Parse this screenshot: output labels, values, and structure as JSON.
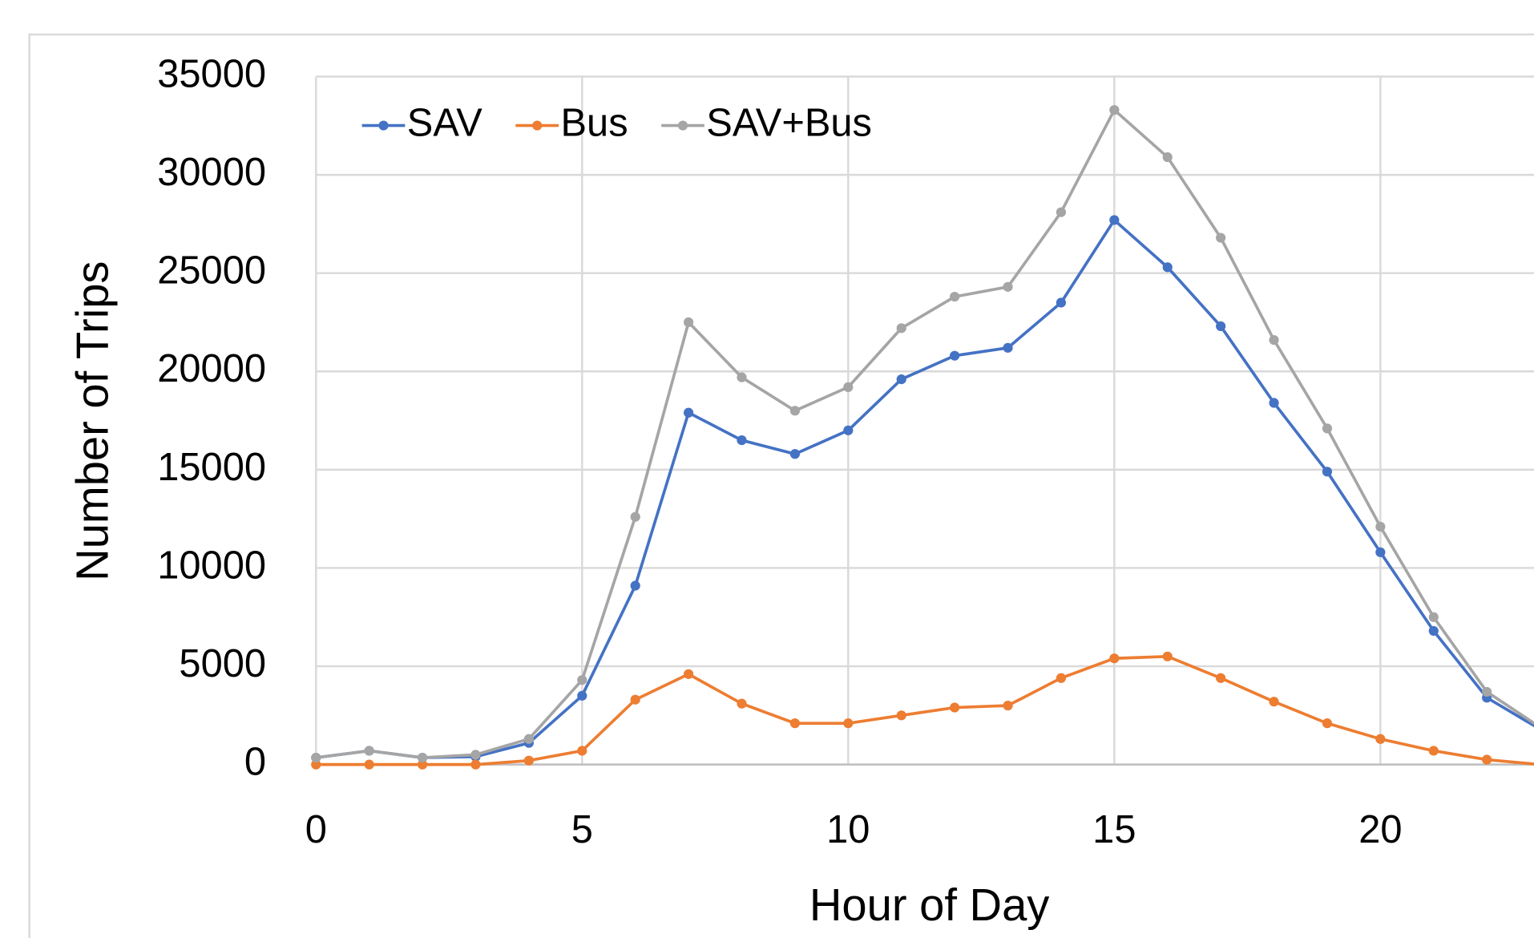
{
  "chart_data": {
    "type": "line",
    "x_label": "Hour of Day",
    "y_label": "Number of Trips",
    "x": [
      0,
      1,
      2,
      3,
      4,
      5,
      6,
      7,
      8,
      9,
      10,
      11,
      12,
      13,
      14,
      15,
      16,
      17,
      18,
      19,
      20,
      21,
      22,
      23
    ],
    "series": [
      {
        "name": "SAV",
        "color": "#4472c4",
        "values": [
          350,
          700,
          350,
          400,
          1100,
          3500,
          9100,
          17900,
          16500,
          15800,
          17000,
          19600,
          20800,
          21200,
          23500,
          27700,
          25300,
          22300,
          18400,
          14900,
          10800,
          6800,
          3400,
          1800
        ]
      },
      {
        "name": "Bus",
        "color": "#ed7d31",
        "values": [
          0,
          0,
          0,
          0,
          200,
          700,
          3300,
          4600,
          3100,
          2100,
          2100,
          2500,
          2900,
          3000,
          4400,
          5400,
          5500,
          4400,
          3200,
          2100,
          1300,
          700,
          250,
          0
        ]
      },
      {
        "name": "SAV+Bus",
        "color": "#a5a5a5",
        "values": [
          350,
          700,
          350,
          500,
          1300,
          4300,
          12600,
          22500,
          19700,
          18000,
          19200,
          22200,
          23800,
          24300,
          28100,
          33300,
          30900,
          26800,
          21600,
          17100,
          12100,
          7500,
          3700,
          1900
        ]
      }
    ],
    "xlim": [
      0,
      25
    ],
    "xticks": [
      0,
      5,
      10,
      15,
      20
    ],
    "ylim": [
      0,
      35000
    ],
    "yticks": [
      0,
      5000,
      10000,
      15000,
      20000,
      25000,
      30000,
      35000
    ],
    "grid": true,
    "legend": "top-left"
  }
}
